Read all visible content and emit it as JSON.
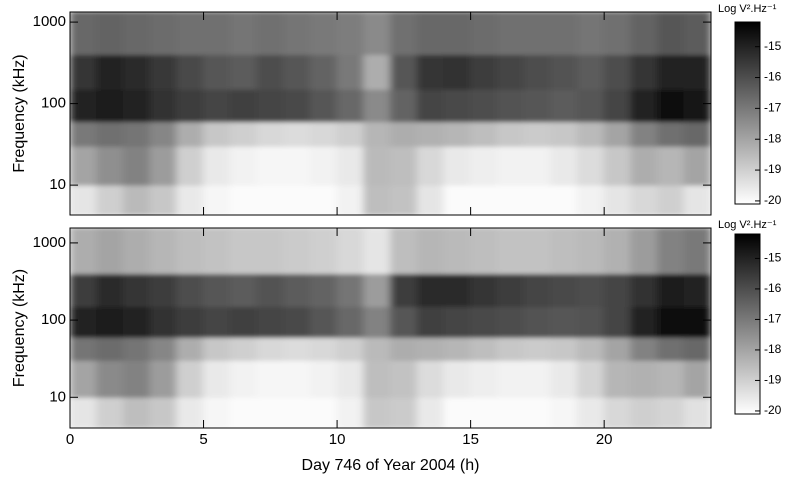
{
  "chart_data": [
    {
      "type": "heatmap",
      "ylabel": "Frequency (kHz)",
      "log_y": true,
      "show_xtick_labels": false,
      "xlim": [
        0,
        24
      ],
      "xticks": [
        0,
        5,
        10,
        15,
        20
      ],
      "ylim": [
        4.3,
        1330
      ],
      "yticks": [
        10,
        100,
        1000
      ],
      "x": [
        0,
        1,
        2,
        3,
        4,
        5,
        6,
        7,
        8,
        9,
        10,
        11,
        12,
        13,
        14,
        15,
        16,
        17,
        18,
        19,
        20,
        21,
        22,
        23,
        24
      ],
      "y": [
        4.3,
        10,
        30,
        60,
        150,
        400,
        1330
      ],
      "values": [
        [
          -19.5,
          -19,
          -18.5,
          -18.8,
          -19.6,
          -19.9,
          -20,
          -20,
          -20,
          -20,
          -19.8,
          -18.6,
          -18.7,
          -19.5,
          -20,
          -20,
          -20,
          -20,
          -20,
          -19.8,
          -19.5,
          -19.2,
          -19,
          -19.5
        ],
        [
          -18,
          -17.5,
          -17.2,
          -17.8,
          -19,
          -19.6,
          -19.8,
          -19.9,
          -19.9,
          -19.8,
          -19.6,
          -18.5,
          -18.6,
          -19.2,
          -19.6,
          -19.7,
          -19.8,
          -19.8,
          -19.6,
          -19.3,
          -18.8,
          -18.2,
          -18.4,
          -18
        ],
        [
          -17,
          -16.8,
          -16.9,
          -17.3,
          -18.2,
          -18.8,
          -19,
          -19.2,
          -19.3,
          -19.2,
          -19,
          -18.4,
          -18.2,
          -18.3,
          -18.4,
          -18.6,
          -18.8,
          -18.9,
          -18.8,
          -18.5,
          -18,
          -17.2,
          -16.8,
          -16.6
        ],
        [
          -15,
          -14.8,
          -15,
          -15.3,
          -15.6,
          -15.8,
          -15.7,
          -15.8,
          -15.9,
          -16.2,
          -16.6,
          -17.4,
          -16.5,
          -15.8,
          -15.9,
          -16,
          -16.1,
          -16.2,
          -16.3,
          -16.2,
          -15.8,
          -15,
          -14.6,
          -14.7
        ],
        [
          -15.4,
          -15,
          -15.2,
          -15.5,
          -15.9,
          -16.2,
          -16.3,
          -16,
          -16.2,
          -16.5,
          -17,
          -18.2,
          -16.2,
          -15.4,
          -15.3,
          -15.6,
          -15.8,
          -16,
          -16.1,
          -16.3,
          -16,
          -15.4,
          -15,
          -15
        ],
        [
          -16.6,
          -16.5,
          -16.6,
          -16.7,
          -16.8,
          -16.8,
          -16.9,
          -16.8,
          -16.9,
          -17,
          -17.1,
          -17.4,
          -16.8,
          -16.6,
          -16.6,
          -16.7,
          -16.8,
          -16.8,
          -16.8,
          -16.9,
          -16.8,
          -16.5,
          -16.2,
          -16.3
        ]
      ],
      "colorbar": {
        "label": "Log V².Hz⁻¹",
        "zlim": [
          -20.1,
          -14.2
        ],
        "ticks": [
          -15,
          -16,
          -17,
          -18,
          -19,
          -20
        ],
        "colors": [
          "#ffffff",
          "#000000"
        ]
      }
    },
    {
      "type": "heatmap",
      "ylabel": "Frequency (kHz)",
      "xlabel": "Day 746 of Year 2004 (h)",
      "log_y": true,
      "show_xtick_labels": true,
      "xlim": [
        0,
        24
      ],
      "xticks": [
        0,
        5,
        10,
        15,
        20
      ],
      "ylim": [
        4,
        1560
      ],
      "yticks": [
        10,
        100,
        1000
      ],
      "x": [
        0,
        1,
        2,
        3,
        4,
        5,
        6,
        7,
        8,
        9,
        10,
        11,
        12,
        13,
        14,
        15,
        16,
        17,
        18,
        19,
        20,
        21,
        22,
        23,
        24
      ],
      "y": [
        4,
        10,
        30,
        60,
        150,
        400,
        1560
      ],
      "values": [
        [
          -19.5,
          -19,
          -18.6,
          -18.8,
          -19.6,
          -19.9,
          -20,
          -20,
          -20,
          -20,
          -19.8,
          -18.8,
          -18.9,
          -19.6,
          -20,
          -20,
          -20,
          -20,
          -19.9,
          -19.6,
          -19.2,
          -19,
          -19.1,
          -19.4
        ],
        [
          -18,
          -17.4,
          -17.2,
          -17.8,
          -19,
          -19.6,
          -19.8,
          -19.9,
          -19.9,
          -19.8,
          -19.6,
          -18.6,
          -18.7,
          -19.3,
          -19.6,
          -19.7,
          -19.8,
          -19.8,
          -19.6,
          -19.1,
          -18.4,
          -18.3,
          -18.4,
          -18
        ],
        [
          -16.9,
          -16.7,
          -16.9,
          -17.3,
          -18.2,
          -18.8,
          -19,
          -19.2,
          -19.3,
          -19.2,
          -19,
          -18.5,
          -18.2,
          -18.3,
          -18.4,
          -18.6,
          -18.8,
          -18.9,
          -18.8,
          -18.5,
          -18,
          -17.2,
          -16.8,
          -16.6
        ],
        [
          -15,
          -14.8,
          -15,
          -15.3,
          -15.6,
          -15.8,
          -15.7,
          -15.8,
          -15.9,
          -16.2,
          -16.6,
          -17.2,
          -16.2,
          -15.7,
          -15.8,
          -15.9,
          -16,
          -16.1,
          -16.2,
          -16.1,
          -15.8,
          -15,
          -14.6,
          -14.6
        ],
        [
          -15.6,
          -15.2,
          -15.4,
          -15.6,
          -16,
          -16.2,
          -16.3,
          -16.1,
          -16.3,
          -16.5,
          -16.9,
          -17.8,
          -15.6,
          -15.2,
          -15.2,
          -15.4,
          -15.6,
          -15.8,
          -15.9,
          -16,
          -15.8,
          -15.3,
          -14.9,
          -15
        ],
        [
          -18.2,
          -18,
          -18.2,
          -18.4,
          -18.6,
          -18.7,
          -18.8,
          -18.8,
          -18.9,
          -19,
          -19.2,
          -19.5,
          -18.6,
          -18.4,
          -18.5,
          -18.6,
          -18.7,
          -18.7,
          -18.6,
          -18.5,
          -18.3,
          -17.8,
          -17.2,
          -17
        ]
      ],
      "colorbar": {
        "label": "Log V².Hz⁻¹",
        "zlim": [
          -20.1,
          -14.2
        ],
        "ticks": [
          -15,
          -16,
          -17,
          -18,
          -19,
          -20
        ],
        "colors": [
          "#ffffff",
          "#000000"
        ]
      }
    }
  ]
}
